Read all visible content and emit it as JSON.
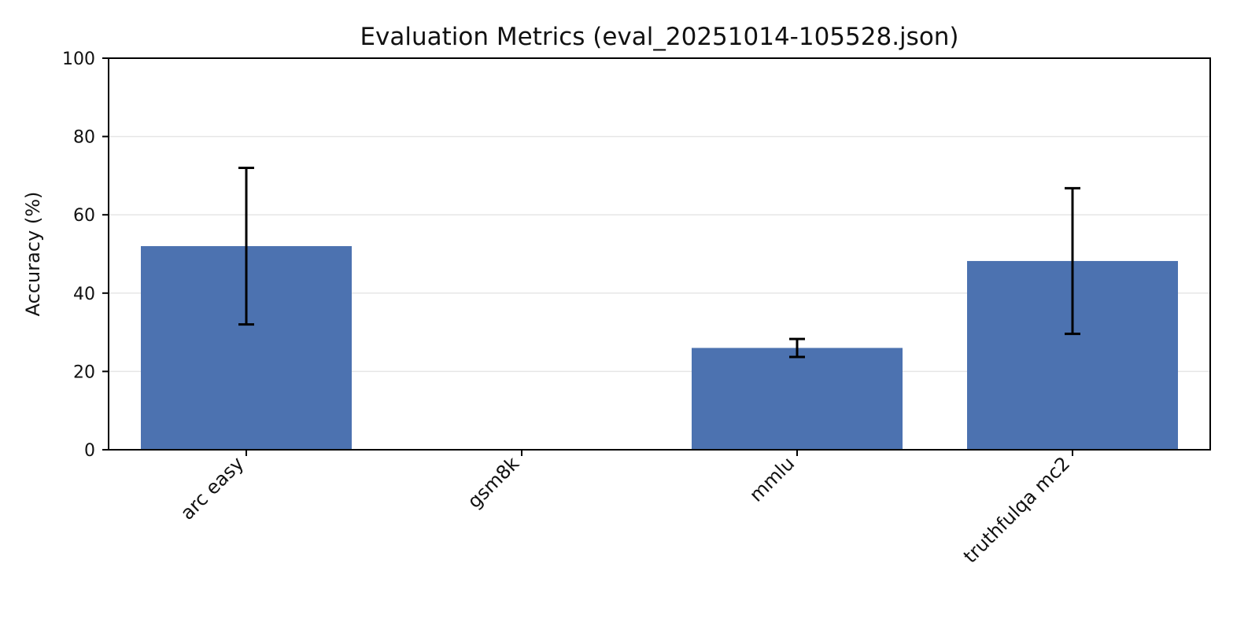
{
  "chart_data": {
    "type": "bar",
    "title": "Evaluation Metrics (eval_20251014-105528.json)",
    "xlabel": "",
    "ylabel": "Accuracy (%)",
    "categories": [
      "arc easy",
      "gsm8k",
      "mmlu",
      "truthfulqa mc2"
    ],
    "values": [
      52,
      0,
      26,
      48.2
    ],
    "error_low": [
      32,
      null,
      23.7,
      29.6
    ],
    "error_high": [
      72,
      null,
      28.3,
      66.8
    ],
    "ylim": [
      0,
      100
    ],
    "yticks": [
      0,
      20,
      40,
      60,
      80,
      100
    ],
    "grid": "y",
    "colors": {
      "bar": "#4c72b0",
      "error": "#000000",
      "axis": "#000000",
      "grid": "#e6e6e6"
    }
  }
}
